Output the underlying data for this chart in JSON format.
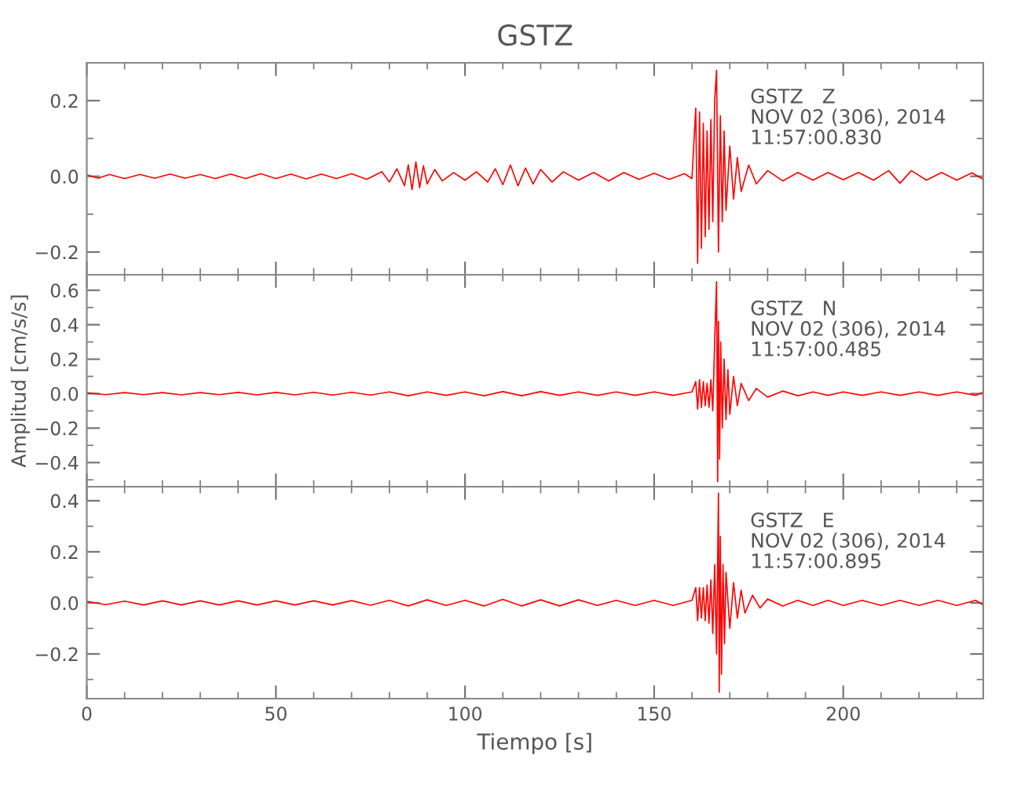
{
  "chart_data": [
    {
      "type": "line",
      "title": "GSTZ",
      "annotations": [
        "GSTZ   Z\nNOV 02 (306), 2014\n11:57:00.830"
      ],
      "tick_labels": "y",
      "xlim": [
        0,
        237
      ],
      "ylim": [
        -0.26,
        0.3
      ],
      "xticks": [
        0,
        {
          "value": 10,
          "label": null
        },
        {
          "value": 20,
          "label": null
        },
        {
          "value": 30,
          "label": null
        },
        {
          "value": 40,
          "label": null
        },
        50,
        {
          "value": 60,
          "label": null
        },
        {
          "value": 70,
          "label": null
        },
        {
          "value": 80,
          "label": null
        },
        {
          "value": 90,
          "label": null
        },
        100,
        {
          "value": 110,
          "label": null
        },
        {
          "value": 120,
          "label": null
        },
        {
          "value": 130,
          "label": null
        },
        {
          "value": 140,
          "label": null
        },
        150,
        {
          "value": 160,
          "label": null
        },
        {
          "value": 170,
          "label": null
        },
        {
          "value": 180,
          "label": null
        },
        {
          "value": 190,
          "label": null
        },
        200,
        {
          "value": 210,
          "label": null
        },
        {
          "value": 220,
          "label": null
        },
        {
          "value": 230,
          "label": null
        }
      ],
      "yticks": [
        {
          "value": -0.2,
          "label": "−0.2"
        },
        {
          "value": -0.1,
          "label": null
        },
        {
          "value": 0,
          "label": "0.0"
        },
        {
          "value": 0.1,
          "label": null
        },
        {
          "value": 0.2,
          "label": "0.2"
        }
      ],
      "series": [
        {
          "color": "#ff0000",
          "x": [
            0,
            3,
            6,
            10,
            14,
            18,
            22,
            26,
            30,
            34,
            38,
            42,
            46,
            50,
            54,
            58,
            62,
            66,
            70,
            74,
            78,
            80,
            82,
            84,
            85,
            86,
            87,
            88,
            89,
            90,
            92,
            94,
            97,
            100,
            103,
            106,
            108,
            110,
            112,
            114,
            116,
            118,
            120,
            123,
            126,
            130,
            134,
            138,
            142,
            146,
            150,
            154,
            158,
            160,
            161,
            161.5,
            162,
            162.5,
            163,
            163.5,
            164,
            164.5,
            165,
            165.5,
            166,
            166.5,
            167,
            167.5,
            168,
            168.5,
            169,
            170,
            171,
            172,
            173,
            175,
            177,
            180,
            184,
            188,
            192,
            196,
            200,
            204,
            208,
            212,
            215,
            218,
            222,
            226,
            230,
            234,
            237
          ],
          "values": [
            0.004,
            -0.005,
            0.005,
            -0.006,
            0.005,
            -0.005,
            0.006,
            -0.005,
            0.005,
            -0.006,
            0.006,
            -0.006,
            0.007,
            -0.006,
            0.006,
            -0.007,
            0.006,
            -0.006,
            0.007,
            -0.008,
            0.012,
            -0.015,
            0.02,
            -0.025,
            0.03,
            -0.035,
            0.038,
            -0.03,
            0.028,
            -0.02,
            0.018,
            -0.012,
            0.01,
            -0.01,
            0.012,
            -0.015,
            0.02,
            -0.022,
            0.03,
            -0.025,
            0.022,
            -0.02,
            0.018,
            -0.015,
            0.012,
            -0.01,
            0.01,
            -0.012,
            0.01,
            -0.008,
            0.008,
            -0.008,
            0.007,
            -0.006,
            0.18,
            -0.23,
            0.17,
            -0.19,
            0.14,
            -0.16,
            0.12,
            -0.14,
            0.15,
            -0.12,
            0.2,
            0.28,
            -0.2,
            0.16,
            -0.12,
            0.12,
            -0.09,
            0.08,
            -0.06,
            0.05,
            -0.04,
            0.03,
            -0.02,
            0.015,
            -0.012,
            0.01,
            -0.01,
            0.01,
            -0.009,
            0.01,
            -0.01,
            0.015,
            -0.018,
            0.015,
            -0.01,
            0.01,
            -0.01,
            0.009,
            -0.008
          ]
        }
      ]
    },
    {
      "type": "line",
      "ylabel": "Amplitud [cm/s/s]",
      "annotations": [
        "GSTZ   N\nNOV 02 (306), 2014\n11:57:00.485"
      ],
      "tick_labels": "y",
      "xlim": [
        0,
        237
      ],
      "ylim": [
        -0.54,
        0.69
      ],
      "xticks": [
        0,
        {
          "value": 10,
          "label": null
        },
        {
          "value": 20,
          "label": null
        },
        {
          "value": 30,
          "label": null
        },
        {
          "value": 40,
          "label": null
        },
        50,
        {
          "value": 60,
          "label": null
        },
        {
          "value": 70,
          "label": null
        },
        {
          "value": 80,
          "label": null
        },
        {
          "value": 90,
          "label": null
        },
        100,
        {
          "value": 110,
          "label": null
        },
        {
          "value": 120,
          "label": null
        },
        {
          "value": 130,
          "label": null
        },
        {
          "value": 140,
          "label": null
        },
        150,
        {
          "value": 160,
          "label": null
        },
        {
          "value": 170,
          "label": null
        },
        {
          "value": 180,
          "label": null
        },
        {
          "value": 190,
          "label": null
        },
        200,
        {
          "value": 210,
          "label": null
        },
        {
          "value": 220,
          "label": null
        },
        {
          "value": 230,
          "label": null
        }
      ],
      "yticks": [
        {
          "value": -0.5,
          "label": null
        },
        {
          "value": -0.4,
          "label": "−0.4"
        },
        {
          "value": -0.3,
          "label": null
        },
        {
          "value": -0.2,
          "label": "−0.2"
        },
        {
          "value": -0.1,
          "label": null
        },
        {
          "value": 0,
          "label": "0.0"
        },
        {
          "value": 0.1,
          "label": null
        },
        {
          "value": 0.2,
          "label": "0.2"
        },
        {
          "value": 0.3,
          "label": null
        },
        {
          "value": 0.4,
          "label": "0.4"
        },
        {
          "value": 0.5,
          "label": null
        },
        {
          "value": 0.6,
          "label": "0.6"
        }
      ],
      "series": [
        {
          "color": "#ff0000",
          "x": [
            0,
            5,
            10,
            15,
            20,
            25,
            30,
            35,
            40,
            45,
            50,
            55,
            60,
            65,
            70,
            75,
            80,
            85,
            90,
            95,
            100,
            105,
            110,
            115,
            120,
            125,
            130,
            135,
            140,
            145,
            150,
            155,
            160,
            161,
            161.5,
            162,
            162.5,
            163,
            163.5,
            164,
            164.5,
            165,
            165.5,
            166,
            166.5,
            166.8,
            167,
            167.3,
            167.6,
            168,
            168.5,
            169,
            169.5,
            170,
            171,
            172,
            173,
            175,
            177,
            180,
            184,
            188,
            192,
            196,
            200,
            205,
            210,
            215,
            220,
            225,
            230,
            235,
            237
          ],
          "values": [
            0.005,
            -0.006,
            0.006,
            -0.006,
            0.006,
            -0.007,
            0.006,
            -0.006,
            0.007,
            -0.007,
            0.007,
            -0.007,
            0.008,
            -0.008,
            0.008,
            -0.008,
            0.01,
            -0.012,
            0.01,
            -0.01,
            0.01,
            -0.012,
            0.012,
            -0.012,
            0.012,
            -0.01,
            0.01,
            -0.01,
            0.01,
            -0.01,
            0.01,
            -0.01,
            0.01,
            0.07,
            -0.09,
            0.08,
            -0.08,
            0.07,
            -0.07,
            0.06,
            -0.08,
            0.08,
            -0.1,
            0.3,
            0.65,
            -0.51,
            0.42,
            -0.38,
            0.3,
            -0.2,
            0.2,
            -0.15,
            0.14,
            -0.12,
            0.1,
            -0.07,
            0.06,
            -0.04,
            0.03,
            -0.02,
            0.015,
            -0.012,
            0.01,
            -0.01,
            0.01,
            -0.01,
            0.01,
            -0.01,
            0.01,
            -0.01,
            0.01,
            -0.01,
            0.008
          ]
        }
      ]
    },
    {
      "type": "line",
      "xlabel": "Tiempo [s]",
      "annotations": [
        "GSTZ   E\nNOV 02 (306), 2014\n11:57:00.895"
      ],
      "xlim": [
        0,
        237
      ],
      "ylim": [
        -0.375,
        0.455
      ],
      "xticks": [
        0,
        {
          "value": 10,
          "label": null
        },
        {
          "value": 20,
          "label": null
        },
        {
          "value": 30,
          "label": null
        },
        {
          "value": 40,
          "label": null
        },
        50,
        {
          "value": 60,
          "label": null
        },
        {
          "value": 70,
          "label": null
        },
        {
          "value": 80,
          "label": null
        },
        {
          "value": 90,
          "label": null
        },
        100,
        {
          "value": 110,
          "label": null
        },
        {
          "value": 120,
          "label": null
        },
        {
          "value": 130,
          "label": null
        },
        {
          "value": 140,
          "label": null
        },
        150,
        {
          "value": 160,
          "label": null
        },
        {
          "value": 170,
          "label": null
        },
        {
          "value": 180,
          "label": null
        },
        {
          "value": 190,
          "label": null
        },
        200,
        {
          "value": 210,
          "label": null
        },
        {
          "value": 220,
          "label": null
        },
        {
          "value": 230,
          "label": null
        }
      ],
      "yticks": [
        {
          "value": -0.3,
          "label": null
        },
        {
          "value": -0.2,
          "label": "−0.2"
        },
        {
          "value": -0.1,
          "label": null
        },
        {
          "value": 0,
          "label": "0.0"
        },
        {
          "value": 0.1,
          "label": null
        },
        {
          "value": 0.2,
          "label": "0.2"
        },
        {
          "value": 0.3,
          "label": null
        },
        {
          "value": 0.4,
          "label": "0.4"
        }
      ],
      "series": [
        {
          "color": "#ff0000",
          "x": [
            0,
            5,
            10,
            15,
            20,
            25,
            30,
            35,
            40,
            45,
            50,
            55,
            60,
            65,
            70,
            75,
            80,
            85,
            90,
            95,
            100,
            105,
            110,
            115,
            120,
            125,
            130,
            135,
            140,
            145,
            150,
            155,
            160,
            161,
            161.5,
            162,
            162.5,
            163,
            163.5,
            164,
            164.5,
            165,
            165.5,
            166,
            166.5,
            167,
            167.2,
            167.5,
            167.8,
            168.2,
            168.6,
            169,
            170,
            171,
            172,
            173,
            174,
            176,
            178,
            180,
            184,
            188,
            192,
            196,
            200,
            205,
            210,
            215,
            220,
            225,
            230,
            235,
            237
          ],
          "values": [
            0.006,
            -0.007,
            0.007,
            -0.008,
            0.008,
            -0.008,
            0.008,
            -0.008,
            0.008,
            -0.008,
            0.008,
            -0.008,
            0.008,
            -0.008,
            0.009,
            -0.009,
            0.01,
            -0.012,
            0.012,
            -0.01,
            0.01,
            -0.012,
            0.014,
            -0.012,
            0.012,
            -0.012,
            0.012,
            -0.01,
            0.01,
            -0.01,
            0.01,
            -0.01,
            0.01,
            0.06,
            -0.07,
            0.06,
            -0.06,
            0.06,
            -0.07,
            0.07,
            -0.08,
            0.09,
            -0.12,
            0.15,
            -0.2,
            0.43,
            -0.35,
            0.26,
            -0.28,
            0.15,
            -0.16,
            0.12,
            -0.1,
            0.08,
            -0.06,
            0.05,
            -0.04,
            0.03,
            -0.02,
            0.015,
            -0.012,
            0.01,
            -0.01,
            0.01,
            -0.01,
            0.01,
            -0.01,
            0.01,
            -0.01,
            0.01,
            -0.01,
            0.01,
            -0.008
          ]
        }
      ]
    }
  ]
}
